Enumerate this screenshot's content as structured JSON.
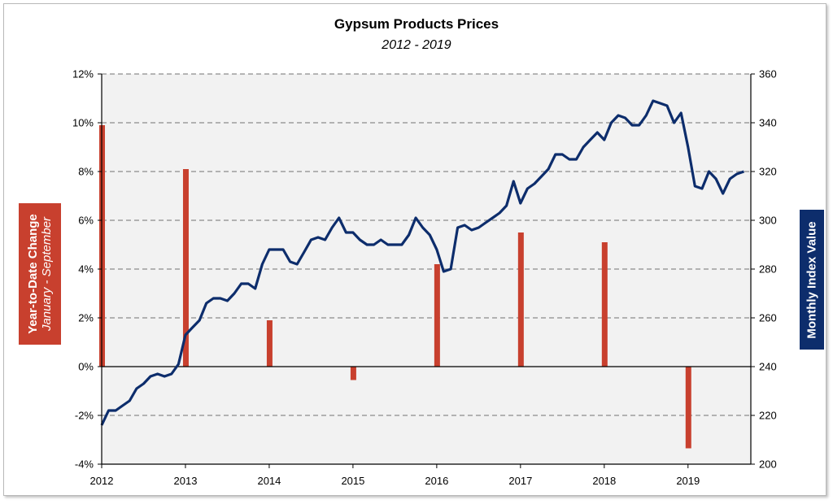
{
  "chart_data": {
    "type": "bar+line",
    "title": "Gypsum Products Prices",
    "subtitle": "2012 - 2019",
    "y_left_label": "Year-to-Date Change",
    "y_left_sublabel": "January - September",
    "y_right_label": "Monthly Index Value",
    "y_left_ticks": [
      "-4%",
      "-2%",
      "0%",
      "2%",
      "4%",
      "6%",
      "8%",
      "10%",
      "12%"
    ],
    "y_right_ticks": [
      "200",
      "220",
      "240",
      "260",
      "280",
      "300",
      "320",
      "340",
      "360"
    ],
    "x_ticks": [
      "2012",
      "2013",
      "2014",
      "2015",
      "2016",
      "2017",
      "2018",
      "2019"
    ],
    "y_left_range": [
      -4,
      12
    ],
    "y_right_range": [
      200,
      360
    ],
    "x_range": [
      2012,
      2019.75
    ],
    "grid": "horizontal dashed",
    "colors": {
      "bars": "#c8402e",
      "line": "#0d2d6c",
      "plot_bg": "#f2f2f2"
    },
    "bar_series": {
      "x": [
        2012,
        2013,
        2014,
        2015,
        2016,
        2017,
        2018,
        2019
      ],
      "values": [
        9.9,
        8.1,
        1.9,
        -0.55,
        4.2,
        5.5,
        5.1,
        -3.35
      ]
    },
    "line_series": {
      "x": [
        2012.0,
        2012.083,
        2012.167,
        2012.25,
        2012.333,
        2012.417,
        2012.5,
        2012.583,
        2012.667,
        2012.75,
        2012.833,
        2012.917,
        2013.0,
        2013.083,
        2013.167,
        2013.25,
        2013.333,
        2013.417,
        2013.5,
        2013.583,
        2013.667,
        2013.75,
        2013.833,
        2013.917,
        2014.0,
        2014.083,
        2014.167,
        2014.25,
        2014.333,
        2014.417,
        2014.5,
        2014.583,
        2014.667,
        2014.75,
        2014.833,
        2014.917,
        2015.0,
        2015.083,
        2015.167,
        2015.25,
        2015.333,
        2015.417,
        2015.5,
        2015.583,
        2015.667,
        2015.75,
        2015.833,
        2015.917,
        2016.0,
        2016.083,
        2016.167,
        2016.25,
        2016.333,
        2016.417,
        2016.5,
        2016.583,
        2016.667,
        2016.75,
        2016.833,
        2016.917,
        2017.0,
        2017.083,
        2017.167,
        2017.25,
        2017.333,
        2017.417,
        2017.5,
        2017.583,
        2017.667,
        2017.75,
        2017.833,
        2017.917,
        2018.0,
        2018.083,
        2018.167,
        2018.25,
        2018.333,
        2018.417,
        2018.5,
        2018.583,
        2018.667,
        2018.75,
        2018.833,
        2018.917,
        2019.0,
        2019.083,
        2019.167,
        2019.25,
        2019.333,
        2019.417,
        2019.5,
        2019.583,
        2019.667
      ],
      "values": [
        216,
        222,
        222,
        224,
        226,
        231,
        233,
        236,
        237,
        236,
        237,
        241,
        253,
        256,
        259,
        266,
        268,
        268,
        267,
        270,
        274,
        274,
        272,
        282,
        288,
        288,
        288,
        283,
        282,
        287,
        292,
        293,
        292,
        297,
        301,
        295,
        295,
        292,
        290,
        290,
        292,
        290,
        290,
        290,
        294,
        301,
        297,
        294,
        288,
        279,
        280,
        297,
        298,
        296,
        297,
        299,
        301,
        303,
        306,
        316,
        307,
        313,
        315,
        318,
        321,
        327,
        327,
        325,
        325,
        330,
        333,
        336,
        333,
        340,
        343,
        342,
        339,
        339,
        343,
        349,
        348,
        347,
        340,
        344,
        330,
        314,
        313,
        320,
        317,
        311,
        317,
        319,
        320
      ]
    }
  }
}
